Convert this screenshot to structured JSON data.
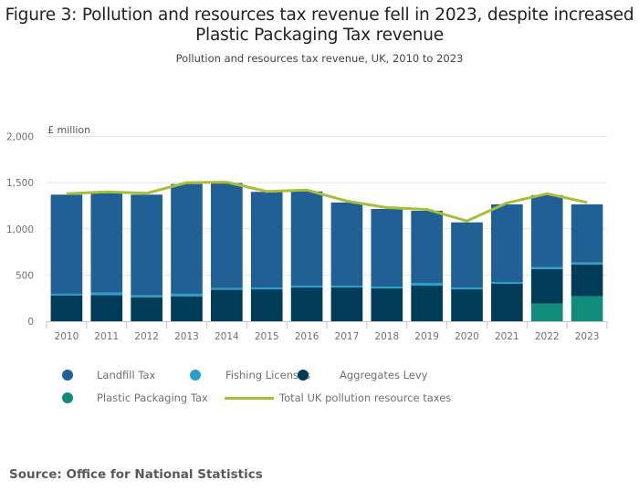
{
  "title": "Figure 3: Pollution and resources tax revenue fell in 2023, despite increased Plastic Packaging Tax revenue",
  "subtitle": "Pollution and resources tax revenue, UK, 2010 to 2023",
  "source": "Source: Office for National Statistics",
  "colors": {
    "landfill": "#206095",
    "fishing": "#27a0cc",
    "aggregates": "#003c57",
    "plastic": "#118c7b",
    "total": "#a8bd3a",
    "grid": "#e2e2e3",
    "axis": "#bec7db"
  },
  "legend": [
    {
      "label": "Landfill Tax",
      "type": "dot",
      "series": "landfill"
    },
    {
      "label": "Fishing Licenses",
      "type": "dot",
      "series": "fishing"
    },
    {
      "label": "Aggregates Levy",
      "type": "dot",
      "series": "aggregates"
    },
    {
      "label": "Plastic Packaging Tax",
      "type": "dot",
      "series": "plastic"
    },
    {
      "label": "Total UK pollution resource taxes",
      "type": "line",
      "series": "total"
    }
  ],
  "chart_data": {
    "type": "bar",
    "stacked": true,
    "title": "Figure 3: Pollution and resources tax revenue fell in 2023, despite increased Plastic Packaging Tax revenue",
    "subtitle": "Pollution and resources tax revenue, UK, 2010 to 2023",
    "xlabel": "",
    "ylabel": "£ million",
    "ylim": [
      0,
      2000
    ],
    "yticks": [
      0,
      500,
      1000,
      1500,
      2000
    ],
    "ytick_labels": [
      "0",
      "500",
      "1,000",
      "1,500",
      "2,000"
    ],
    "grid": true,
    "legend_position": "bottom",
    "categories": [
      "2010",
      "2011",
      "2012",
      "2013",
      "2014",
      "2015",
      "2016",
      "2017",
      "2018",
      "2019",
      "2020",
      "2021",
      "2022",
      "2023"
    ],
    "series": [
      {
        "name": "Plastic Packaging Tax",
        "key": "plastic",
        "values": [
          0,
          0,
          0,
          0,
          0,
          0,
          0,
          0,
          0,
          0,
          0,
          0,
          190,
          270
        ]
      },
      {
        "name": "Aggregates Levy",
        "key": "aggregates",
        "values": [
          280,
          283,
          260,
          270,
          340,
          345,
          365,
          365,
          355,
          385,
          345,
          405,
          375,
          345
        ]
      },
      {
        "name": "Fishing Licenses",
        "key": "fishing",
        "values": [
          17,
          27,
          20,
          27,
          18,
          20,
          20,
          20,
          20,
          30,
          20,
          20,
          20,
          20
        ]
      },
      {
        "name": "Landfill Tax",
        "key": "landfill",
        "values": [
          1073,
          1080,
          1090,
          1188,
          1137,
          1035,
          1020,
          900,
          840,
          780,
          705,
          840,
          780,
          630
        ]
      }
    ],
    "line_series": {
      "name": "Total UK pollution resource taxes",
      "key": "total",
      "type": "line",
      "values": [
        1380,
        1400,
        1385,
        1500,
        1505,
        1405,
        1420,
        1300,
        1230,
        1210,
        1085,
        1280,
        1380,
        1285
      ]
    }
  }
}
